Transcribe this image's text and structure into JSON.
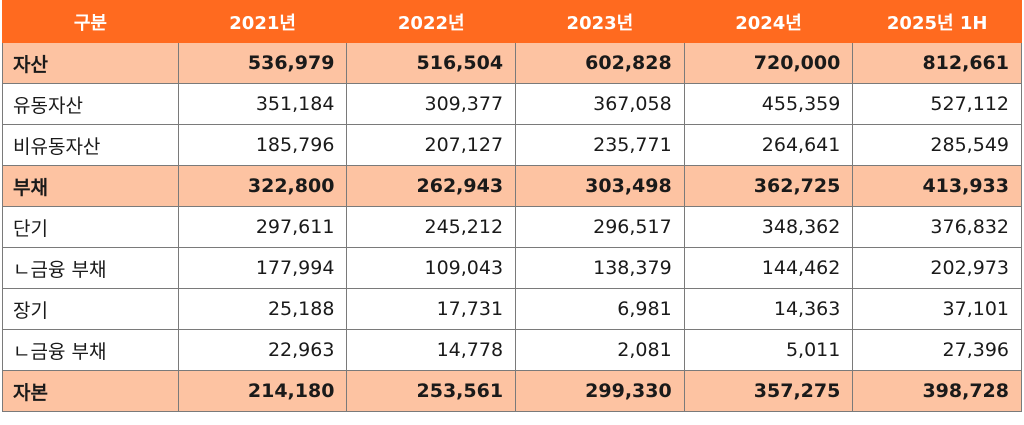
{
  "table": {
    "headers": [
      "구분",
      "2021년",
      "2022년",
      "2023년",
      "2024년",
      "2025년 1H"
    ],
    "rows": [
      {
        "label": "자산",
        "type": "total",
        "values": [
          "536,979",
          "516,504",
          "602,828",
          "720,000",
          "812,661"
        ]
      },
      {
        "label": "유동자산",
        "type": "plain",
        "values": [
          "351,184",
          "309,377",
          "367,058",
          "455,359",
          "527,112"
        ]
      },
      {
        "label": "비유동자산",
        "type": "plain",
        "values": [
          "185,796",
          "207,127",
          "235,771",
          "264,641",
          "285,549"
        ]
      },
      {
        "label": "부채",
        "type": "total",
        "values": [
          "322,800",
          "262,943",
          "303,498",
          "362,725",
          "413,933"
        ]
      },
      {
        "label": "단기",
        "type": "plain",
        "values": [
          "297,611",
          "245,212",
          "296,517",
          "348,362",
          "376,832"
        ]
      },
      {
        "label": "ㄴ금융 부채",
        "type": "plain",
        "values": [
          "177,994",
          "109,043",
          "138,379",
          "144,462",
          "202,973"
        ]
      },
      {
        "label": "장기",
        "type": "plain",
        "values": [
          "25,188",
          "17,731",
          "6,981",
          "14,363",
          "37,101"
        ]
      },
      {
        "label": "ㄴ금융 부채",
        "type": "plain",
        "values": [
          "22,963",
          "14,778",
          "2,081",
          "5,011",
          "27,396"
        ]
      },
      {
        "label": "자본",
        "type": "total",
        "values": [
          "214,180",
          "253,561",
          "299,330",
          "357,275",
          "398,728"
        ]
      }
    ]
  },
  "colors": {
    "header_bg": "#ff6a1f",
    "total_row_bg": "#fdc3a2",
    "border": "#7a7a7a"
  }
}
